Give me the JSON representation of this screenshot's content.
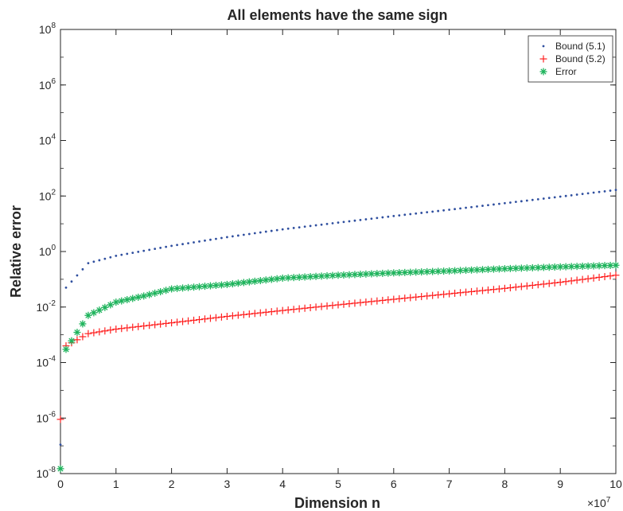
{
  "chart_data": {
    "type": "scatter",
    "title": "All elements have the same sign",
    "xlabel": "Dimension n",
    "ylabel": "Relative error",
    "x_multiplier_label": "×10",
    "x_multiplier_exponent": "7",
    "x_scale": 10000000,
    "xlim": [
      0,
      10
    ],
    "ylim": [
      1e-08,
      100000000.0
    ],
    "y_scale": "log",
    "x_ticks": [
      "0",
      "1",
      "2",
      "3",
      "4",
      "5",
      "6",
      "7",
      "8",
      "9",
      "10"
    ],
    "y_ticks": [
      {
        "base": "10",
        "exp": "-8"
      },
      {
        "base": "10",
        "exp": "-6"
      },
      {
        "base": "10",
        "exp": "-4"
      },
      {
        "base": "10",
        "exp": "-2"
      },
      {
        "base": "10",
        "exp": "0"
      },
      {
        "base": "10",
        "exp": "2"
      },
      {
        "base": "10",
        "exp": "4"
      },
      {
        "base": "10",
        "exp": "6"
      },
      {
        "base": "10",
        "exp": "8"
      }
    ],
    "grid": false,
    "legend_position": "top-right",
    "colors": {
      "bound51": "#2f4f9f",
      "bound52": "#ff2020",
      "error": "#1db35b"
    },
    "series": [
      {
        "name": "Bound (5.1)",
        "marker": "dot",
        "color": "#2f4f9f",
        "points": [
          [
            0,
            1.1e-07
          ],
          [
            0.1,
            0.05
          ],
          [
            0.5,
            0.38
          ],
          [
            1,
            0.7
          ],
          [
            2,
            1.6
          ],
          [
            3,
            3.3
          ],
          [
            4,
            6.3
          ],
          [
            5,
            11
          ],
          [
            6,
            19
          ],
          [
            7,
            32
          ],
          [
            8,
            55
          ],
          [
            9,
            95
          ],
          [
            10,
            165
          ]
        ]
      },
      {
        "name": "Bound (5.2)",
        "marker": "plus",
        "color": "#ff2020",
        "points": [
          [
            0,
            9e-07
          ],
          [
            0.1,
            0.0004
          ],
          [
            0.5,
            0.0011
          ],
          [
            1,
            0.0016
          ],
          [
            2,
            0.0027
          ],
          [
            3,
            0.0046
          ],
          [
            4,
            0.0075
          ],
          [
            5,
            0.012
          ],
          [
            6,
            0.019
          ],
          [
            7,
            0.03
          ],
          [
            8,
            0.047
          ],
          [
            9,
            0.078
          ],
          [
            10,
            0.14
          ]
        ]
      },
      {
        "name": "Error",
        "marker": "asterisk",
        "color": "#1db35b",
        "points": [
          [
            0,
            1.5e-08
          ],
          [
            0.1,
            0.0003
          ],
          [
            0.5,
            0.005
          ],
          [
            1,
            0.015
          ],
          [
            1.5,
            0.025
          ],
          [
            2,
            0.045
          ],
          [
            3,
            0.065
          ],
          [
            3.5,
            0.085
          ],
          [
            4,
            0.11
          ],
          [
            5,
            0.14
          ],
          [
            6,
            0.17
          ],
          [
            7,
            0.2
          ],
          [
            8,
            0.24
          ],
          [
            9,
            0.28
          ],
          [
            10,
            0.32
          ]
        ]
      }
    ]
  }
}
